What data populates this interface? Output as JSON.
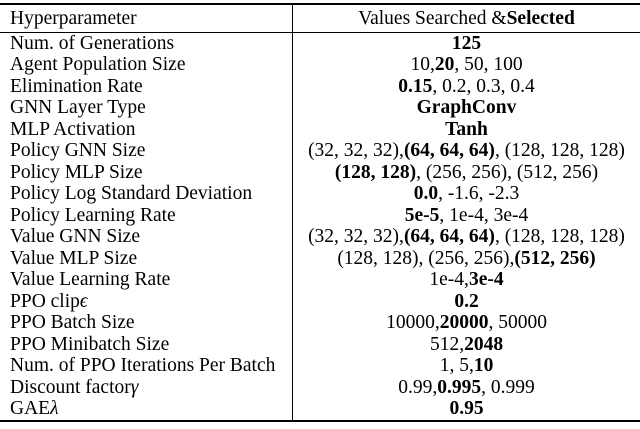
{
  "page": {
    "background_color": "#ffffff",
    "text_color": "#000000",
    "rule_color": "#000000"
  },
  "table": {
    "header": {
      "col1": [
        {
          "t": "Hyperparameter"
        }
      ],
      "col2": [
        {
          "t": "Values Searched & "
        },
        {
          "t": "Selected",
          "b": true
        }
      ]
    },
    "rows": [
      {
        "param": [
          {
            "t": "Num. of Generations"
          }
        ],
        "values": [
          {
            "t": "125",
            "b": true
          }
        ]
      },
      {
        "param": [
          {
            "t": "Agent Population Size"
          }
        ],
        "values": [
          {
            "t": "10, "
          },
          {
            "t": "20",
            "b": true
          },
          {
            "t": ", 50, 100"
          }
        ]
      },
      {
        "param": [
          {
            "t": "Elimination Rate"
          }
        ],
        "values": [
          {
            "t": "0.15",
            "b": true
          },
          {
            "t": ", 0.2, 0.3, 0.4"
          }
        ]
      },
      {
        "param": [
          {
            "t": "GNN Layer Type"
          }
        ],
        "values": [
          {
            "t": "GraphConv",
            "b": true
          }
        ]
      },
      {
        "param": [
          {
            "t": "MLP Activation"
          }
        ],
        "values": [
          {
            "t": "Tanh",
            "b": true
          }
        ]
      },
      {
        "param": [
          {
            "t": "Policy GNN Size"
          }
        ],
        "values": [
          {
            "t": "(32, 32, 32), "
          },
          {
            "t": "(64, 64, 64)",
            "b": true
          },
          {
            "t": ", (128, 128, 128)"
          }
        ]
      },
      {
        "param": [
          {
            "t": "Policy MLP Size"
          }
        ],
        "values": [
          {
            "t": "(128, 128)",
            "b": true
          },
          {
            "t": ", (256, 256), (512, 256)"
          }
        ]
      },
      {
        "param": [
          {
            "t": "Policy Log Standard Deviation"
          }
        ],
        "values": [
          {
            "t": "0.0",
            "b": true
          },
          {
            "t": ", -1.6, -2.3"
          }
        ]
      },
      {
        "param": [
          {
            "t": "Policy Learning Rate"
          }
        ],
        "values": [
          {
            "t": "5e-5",
            "b": true
          },
          {
            "t": ", 1e-4, 3e-4"
          }
        ]
      },
      {
        "param": [
          {
            "t": "Value GNN Size"
          }
        ],
        "values": [
          {
            "t": "(32, 32, 32), "
          },
          {
            "t": "(64, 64, 64)",
            "b": true
          },
          {
            "t": ", (128, 128, 128)"
          }
        ]
      },
      {
        "param": [
          {
            "t": "Value MLP Size"
          }
        ],
        "values": [
          {
            "t": "(128, 128), (256, 256), "
          },
          {
            "t": "(512, 256)",
            "b": true
          }
        ]
      },
      {
        "param": [
          {
            "t": "Value Learning Rate"
          }
        ],
        "values": [
          {
            "t": "1e-4, "
          },
          {
            "t": "3e-4",
            "b": true
          }
        ]
      },
      {
        "param": [
          {
            "t": "PPO clip "
          },
          {
            "t": "ϵ",
            "i": true
          }
        ],
        "values": [
          {
            "t": "0.2",
            "b": true
          }
        ]
      },
      {
        "param": [
          {
            "t": "PPO Batch Size"
          }
        ],
        "values": [
          {
            "t": "10000, "
          },
          {
            "t": "20000",
            "b": true
          },
          {
            "t": ", 50000"
          }
        ]
      },
      {
        "param": [
          {
            "t": "PPO Minibatch Size"
          }
        ],
        "values": [
          {
            "t": "512, "
          },
          {
            "t": "2048",
            "b": true
          }
        ]
      },
      {
        "param": [
          {
            "t": "Num. of PPO Iterations Per Batch"
          }
        ],
        "values": [
          {
            "t": "1, 5, "
          },
          {
            "t": "10",
            "b": true
          }
        ]
      },
      {
        "param": [
          {
            "t": "Discount factor "
          },
          {
            "t": "γ",
            "i": true
          }
        ],
        "values": [
          {
            "t": "0.99, "
          },
          {
            "t": "0.995",
            "b": true
          },
          {
            "t": ", 0.999"
          }
        ]
      },
      {
        "param": [
          {
            "t": "GAE "
          },
          {
            "t": "λ",
            "i": true
          }
        ],
        "values": [
          {
            "t": "0.95",
            "b": true
          }
        ]
      }
    ]
  }
}
